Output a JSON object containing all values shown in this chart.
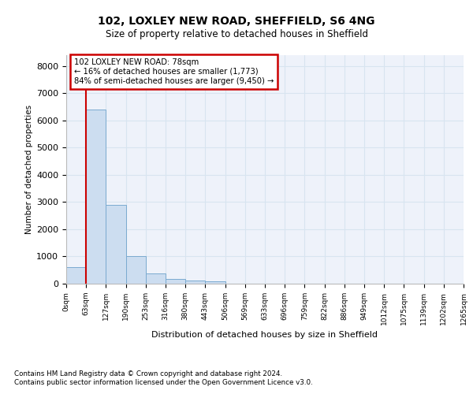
{
  "title1": "102, LOXLEY NEW ROAD, SHEFFIELD, S6 4NG",
  "title2": "Size of property relative to detached houses in Sheffield",
  "xlabel": "Distribution of detached houses by size in Sheffield",
  "ylabel": "Number of detached properties",
  "bin_labels": [
    "0sqm",
    "63sqm",
    "127sqm",
    "190sqm",
    "253sqm",
    "316sqm",
    "380sqm",
    "443sqm",
    "506sqm",
    "569sqm",
    "633sqm",
    "696sqm",
    "759sqm",
    "822sqm",
    "886sqm",
    "949sqm",
    "1012sqm",
    "1075sqm",
    "1139sqm",
    "1202sqm",
    "1265sqm"
  ],
  "bar_values": [
    620,
    6400,
    2900,
    1000,
    380,
    175,
    120,
    90,
    0,
    0,
    0,
    0,
    0,
    0,
    0,
    0,
    0,
    0,
    0,
    0
  ],
  "bar_color": "#ccddf0",
  "bar_edge_color": "#7aaad0",
  "property_line_color": "#cc0000",
  "annotation_line1": "102 LOXLEY NEW ROAD: 78sqm",
  "annotation_line2": "← 16% of detached houses are smaller (1,773)",
  "annotation_line3": "84% of semi-detached houses are larger (9,450) →",
  "annotation_box_color": "#ffffff",
  "annotation_box_edge": "#cc0000",
  "grid_color": "#d8e4f0",
  "background_color": "#eef2fa",
  "footer1": "Contains HM Land Registry data © Crown copyright and database right 2024.",
  "footer2": "Contains public sector information licensed under the Open Government Licence v3.0.",
  "ylim": [
    0,
    8400
  ],
  "yticks": [
    0,
    1000,
    2000,
    3000,
    4000,
    5000,
    6000,
    7000,
    8000
  ],
  "property_bar_index": 1,
  "num_bars": 20
}
